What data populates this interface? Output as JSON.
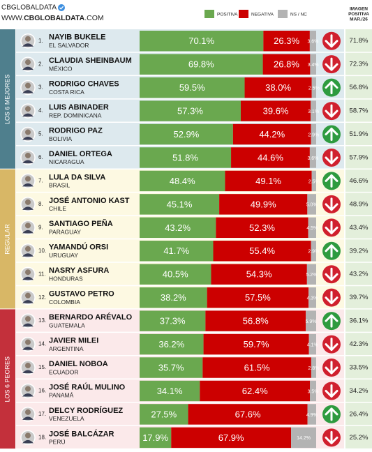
{
  "header": {
    "brand": "CBGLOBALDATA",
    "url": [
      "WWW.",
      "CBGLOBALDATA",
      ".COM"
    ]
  },
  "chart_data": {
    "type": "stacked-bar",
    "ranks": [
      "1.",
      "2.",
      "3.",
      "4.",
      "5.",
      "6.",
      "7.",
      "8.",
      "9.",
      "10.",
      "11.",
      "12.",
      "13.",
      "14.",
      "15.",
      "16.",
      "17.",
      "18."
    ],
    "names": [
      "NAYIB BUKELE",
      "CLAUDIA SHEINBAUM",
      "RODRIGO CHAVES",
      "LUIS ABINADER",
      "RODRIGO PAZ",
      "DANIEL ORTEGA",
      "LULA DA SILVA",
      "JOSÉ ANTONIO KAST",
      "SANTIAGO PEÑA",
      "YAMANDÚ ORSI",
      "NASRY ASFURA",
      "GUSTAVO PETRO",
      "BERNARDO ARÉVALO",
      "JAVIER MILEI",
      "DANIEL NOBOA",
      "JOSÉ RAÚL MULINO",
      "DELCY RODRÍGUEZ",
      "JOSÉ BALCÁZAR"
    ],
    "countries": [
      "EL SALVADOR",
      "MÉXICO",
      "COSTA RICA",
      "REP. DOMINICANA",
      "BOLIVIA",
      "NICARAGUA",
      "BRASIL",
      "CHILE",
      "PARAGUAY",
      "URUGUAY",
      "HONDURAS",
      "COLOMBIA",
      "GUATEMALA",
      "ARGENTINA",
      "ECUADOR",
      "PANAMÁ",
      "VENEZUELA",
      "PERÚ"
    ],
    "groups": [
      {
        "label": "LOS 6 MEJORES",
        "color": "#4f7f8d",
        "background": "#dde9ee"
      },
      {
        "label": "REGULAR",
        "color": "#d8b766",
        "background": "#fdf9e2"
      },
      {
        "label": "LOS 6 PEORES",
        "color": "#c3303b",
        "background": "#fbe9ea"
      }
    ],
    "xlim": [
      0,
      100
    ],
    "series": [
      {
        "name": "POSITIVA",
        "color": "#6aa84f",
        "values": [
          70.1,
          69.8,
          59.5,
          57.3,
          52.9,
          51.8,
          48.4,
          45.1,
          43.2,
          41.7,
          40.5,
          38.2,
          37.3,
          36.2,
          35.7,
          34.1,
          27.5,
          17.9
        ],
        "value_labels": [
          "70.1%",
          "69.8%",
          "59.5%",
          "57.3%",
          "52.9%",
          "51.8%",
          "48.4%",
          "45.1%",
          "43.2%",
          "41.7%",
          "40.5%",
          "38.2%",
          "37.3%",
          "36.2%",
          "35.7%",
          "34.1%",
          "27.5%",
          "17.9%"
        ]
      },
      {
        "name": "NEGATIVA",
        "color": "#cc0000",
        "values": [
          26.3,
          26.8,
          38.0,
          39.6,
          44.2,
          44.6,
          49.1,
          49.9,
          52.3,
          55.4,
          54.3,
          57.5,
          56.8,
          59.7,
          61.5,
          62.4,
          67.6,
          67.9
        ],
        "value_labels": [
          "26.3%",
          "26.8%",
          "38.0%",
          "39.6%",
          "44.2%",
          "44.6%",
          "49.1%",
          "49.9%",
          "52.3%",
          "55.4%",
          "54.3%",
          "57.5%",
          "56.8%",
          "59.7%",
          "61.5%",
          "62.4%",
          "67.6%",
          "67.9%"
        ]
      },
      {
        "name": "NS / NC",
        "color": "#b3b3b3",
        "values": [
          3.6,
          3.4,
          2.5,
          3.1,
          2.9,
          3.6,
          2.5,
          5.0,
          4.5,
          2.9,
          5.2,
          4.3,
          5.9,
          4.1,
          2.8,
          3.5,
          4.9,
          14.2
        ],
        "value_labels": [
          "3.6%",
          "3.4%",
          "2.5%",
          "3.1%",
          "2.9%",
          "3.6%",
          "2.5%",
          "5.0%",
          "4.5%",
          "2.9%",
          "5.2%",
          "4.3%",
          "5.9%",
          "4.1%",
          "2.8%",
          "3.5%",
          "4.9%",
          "14.2%"
        ]
      }
    ],
    "trend": [
      "down",
      "down",
      "up",
      "down",
      "up",
      "down",
      "up",
      "down",
      "down",
      "up",
      "down",
      "down",
      "up",
      "down",
      "down",
      "down",
      "up",
      "down"
    ],
    "trend_colors": {
      "up": "#2e9b3f",
      "down": "#d0202e"
    },
    "imagen": {
      "title": [
        "IMAGEN",
        "POSITIVA",
        "MAR./26"
      ],
      "background": "#e3efdb",
      "values": [
        71.8,
        72.3,
        56.8,
        58.7,
        51.9,
        57.9,
        46.6,
        48.9,
        43.4,
        39.2,
        43.2,
        39.7,
        36.1,
        42.3,
        33.5,
        34.2,
        26.4,
        25.2
      ],
      "value_labels": [
        "71.8%",
        "72.3%",
        "56.8%",
        "58.7%",
        "51.9%",
        "57.9%",
        "46.6%",
        "48.9%",
        "43.4%",
        "39.2%",
        "43.2%",
        "39.7%",
        "36.1%",
        "42.3%",
        "33.5%",
        "34.2%",
        "26.4%",
        "25.2%"
      ]
    }
  }
}
